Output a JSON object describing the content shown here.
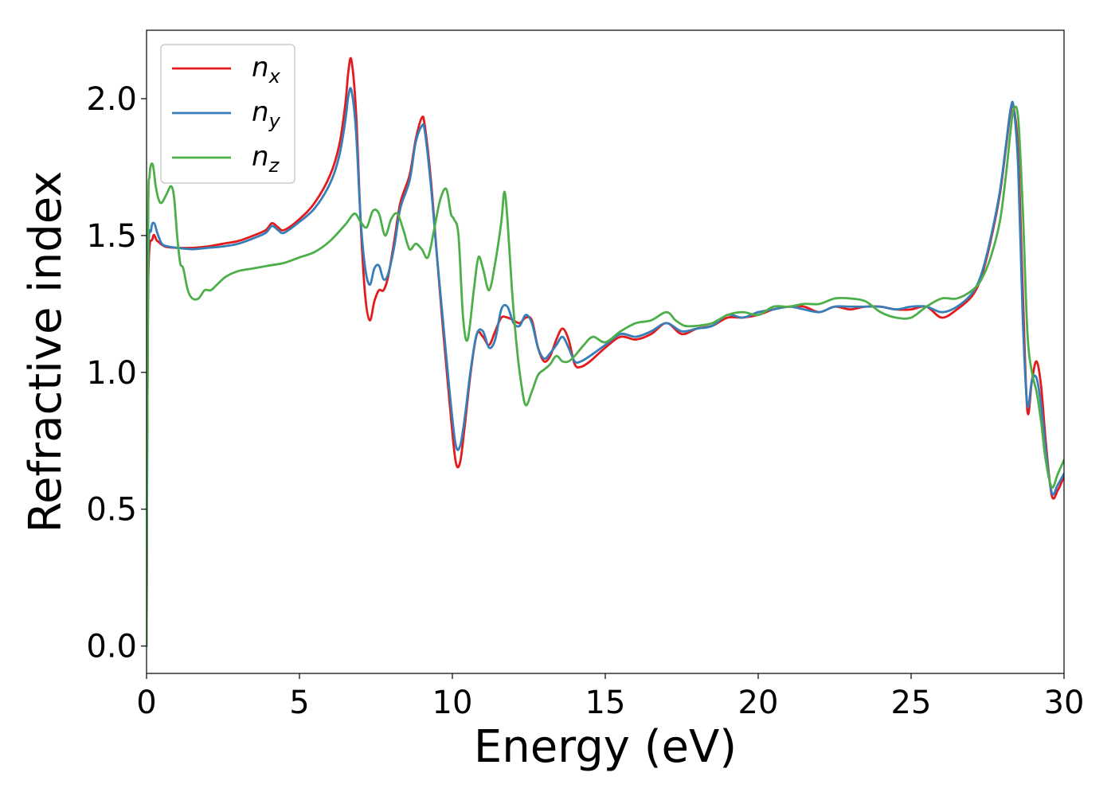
{
  "chart_data": {
    "type": "line",
    "title": "",
    "xlabel": "Energy (eV)",
    "ylabel": "Refractive index",
    "xlim": [
      0,
      30
    ],
    "ylim": [
      -0.1,
      2.25
    ],
    "xticks": [
      0,
      5,
      10,
      15,
      20,
      25,
      30
    ],
    "xtick_labels": [
      "0",
      "5",
      "10",
      "15",
      "20",
      "25",
      "30"
    ],
    "yticks": [
      0.0,
      0.5,
      1.0,
      1.5,
      2.0
    ],
    "ytick_labels": [
      "0.0",
      "0.5",
      "1.0",
      "1.5",
      "2.0"
    ],
    "grid": false,
    "legend_position": "top-left",
    "series": [
      {
        "name": "n_x",
        "label_base": "n",
        "label_sub": "x",
        "color": "#e41a1c",
        "x": [
          0,
          0.05,
          0.2,
          0.35,
          0.6,
          1.0,
          1.5,
          2.0,
          2.5,
          3.0,
          3.5,
          3.9,
          4.1,
          4.3,
          4.5,
          5.0,
          5.5,
          6.0,
          6.3,
          6.5,
          6.6,
          6.7,
          6.85,
          7.0,
          7.15,
          7.3,
          7.45,
          7.6,
          7.75,
          7.9,
          8.1,
          8.3,
          8.6,
          8.8,
          9.0,
          9.1,
          9.3,
          9.5,
          9.7,
          9.9,
          10.1,
          10.25,
          10.4,
          10.6,
          10.8,
          11.0,
          11.2,
          11.4,
          11.6,
          11.8,
          12.0,
          12.2,
          12.4,
          12.6,
          12.8,
          13.0,
          13.2,
          13.4,
          13.6,
          13.8,
          14.0,
          14.2,
          14.5,
          15.0,
          15.5,
          16.0,
          16.5,
          17.0,
          17.5,
          18.0,
          18.5,
          19.0,
          19.5,
          20.0,
          20.5,
          21.0,
          21.5,
          22.0,
          22.5,
          23.0,
          23.5,
          24.0,
          24.5,
          25.0,
          25.5,
          26.0,
          26.5,
          27.0,
          27.3,
          27.6,
          27.9,
          28.1,
          28.25,
          28.35,
          28.5,
          28.65,
          28.8,
          28.95,
          29.1,
          29.25,
          29.4,
          29.6,
          29.8,
          30.0
        ],
        "y": [
          0.0,
          1.3,
          1.49,
          1.48,
          1.46,
          1.455,
          1.455,
          1.46,
          1.47,
          1.48,
          1.5,
          1.52,
          1.545,
          1.53,
          1.52,
          1.56,
          1.62,
          1.72,
          1.83,
          1.98,
          2.1,
          2.14,
          1.95,
          1.55,
          1.28,
          1.19,
          1.26,
          1.3,
          1.3,
          1.35,
          1.48,
          1.62,
          1.72,
          1.85,
          1.93,
          1.9,
          1.7,
          1.42,
          1.15,
          0.9,
          0.68,
          0.67,
          0.8,
          1.0,
          1.14,
          1.13,
          1.1,
          1.15,
          1.2,
          1.2,
          1.19,
          1.18,
          1.2,
          1.19,
          1.09,
          1.04,
          1.06,
          1.12,
          1.16,
          1.12,
          1.03,
          1.02,
          1.04,
          1.09,
          1.13,
          1.12,
          1.14,
          1.18,
          1.14,
          1.16,
          1.17,
          1.2,
          1.2,
          1.21,
          1.23,
          1.24,
          1.24,
          1.22,
          1.24,
          1.23,
          1.24,
          1.24,
          1.23,
          1.23,
          1.24,
          1.2,
          1.23,
          1.28,
          1.35,
          1.48,
          1.65,
          1.82,
          1.95,
          1.97,
          1.8,
          1.3,
          0.86,
          0.97,
          1.04,
          0.95,
          0.75,
          0.55,
          0.57,
          0.62
        ]
      },
      {
        "name": "n_y",
        "label_base": "n",
        "label_sub": "y",
        "color": "#377eb8",
        "x": [
          0,
          0.05,
          0.15,
          0.25,
          0.35,
          0.5,
          0.7,
          1.0,
          1.5,
          2.0,
          2.5,
          3.0,
          3.5,
          3.9,
          4.1,
          4.3,
          4.5,
          5.0,
          5.5,
          6.0,
          6.3,
          6.5,
          6.6,
          6.7,
          6.85,
          7.0,
          7.15,
          7.3,
          7.45,
          7.6,
          7.75,
          7.9,
          8.1,
          8.3,
          8.6,
          8.8,
          9.0,
          9.1,
          9.3,
          9.5,
          9.7,
          9.9,
          10.1,
          10.25,
          10.4,
          10.6,
          10.8,
          11.0,
          11.2,
          11.4,
          11.6,
          11.8,
          12.0,
          12.2,
          12.4,
          12.6,
          12.8,
          13.0,
          13.2,
          13.4,
          13.6,
          13.8,
          14.0,
          14.2,
          14.5,
          15.0,
          15.5,
          16.0,
          16.5,
          17.0,
          17.5,
          18.0,
          18.5,
          19.0,
          19.5,
          20.0,
          20.5,
          21.0,
          21.5,
          22.0,
          22.5,
          23.0,
          23.5,
          24.0,
          24.5,
          25.0,
          25.5,
          26.0,
          26.5,
          27.0,
          27.3,
          27.6,
          27.9,
          28.1,
          28.25,
          28.35,
          28.5,
          28.65,
          28.8,
          28.95,
          29.1,
          29.25,
          29.4,
          29.6,
          29.8,
          30.0
        ],
        "y": [
          0.0,
          1.35,
          1.52,
          1.545,
          1.51,
          1.47,
          1.46,
          1.455,
          1.45,
          1.455,
          1.46,
          1.47,
          1.49,
          1.51,
          1.535,
          1.52,
          1.51,
          1.55,
          1.6,
          1.69,
          1.79,
          1.92,
          2.01,
          2.03,
          1.88,
          1.56,
          1.38,
          1.32,
          1.38,
          1.39,
          1.34,
          1.36,
          1.46,
          1.6,
          1.7,
          1.84,
          1.9,
          1.88,
          1.68,
          1.42,
          1.18,
          0.94,
          0.74,
          0.73,
          0.83,
          1.01,
          1.14,
          1.15,
          1.09,
          1.12,
          1.23,
          1.24,
          1.18,
          1.17,
          1.21,
          1.18,
          1.09,
          1.05,
          1.07,
          1.1,
          1.13,
          1.09,
          1.04,
          1.04,
          1.06,
          1.1,
          1.14,
          1.13,
          1.15,
          1.18,
          1.15,
          1.16,
          1.17,
          1.21,
          1.2,
          1.22,
          1.23,
          1.24,
          1.23,
          1.22,
          1.24,
          1.24,
          1.24,
          1.24,
          1.23,
          1.24,
          1.24,
          1.22,
          1.24,
          1.29,
          1.36,
          1.49,
          1.66,
          1.83,
          1.96,
          1.97,
          1.75,
          1.2,
          0.88,
          0.97,
          0.98,
          0.88,
          0.72,
          0.56,
          0.59,
          0.63
        ]
      },
      {
        "name": "n_z",
        "label_base": "n",
        "label_sub": "z",
        "color": "#4daf4a",
        "x": [
          0,
          0.05,
          0.1,
          0.2,
          0.3,
          0.4,
          0.5,
          0.65,
          0.8,
          0.9,
          1.0,
          1.1,
          1.2,
          1.35,
          1.5,
          1.7,
          1.9,
          2.1,
          2.3,
          2.6,
          3.0,
          3.5,
          4.0,
          4.5,
          5.0,
          5.5,
          6.0,
          6.5,
          6.8,
          7.0,
          7.2,
          7.4,
          7.6,
          7.8,
          8.0,
          8.2,
          8.4,
          8.6,
          8.8,
          9.0,
          9.2,
          9.4,
          9.6,
          9.8,
          9.95,
          10.05,
          10.2,
          10.35,
          10.5,
          10.7,
          10.85,
          11.0,
          11.2,
          11.4,
          11.6,
          11.7,
          11.8,
          11.95,
          12.1,
          12.25,
          12.4,
          12.6,
          12.8,
          13.0,
          13.2,
          13.4,
          13.6,
          13.8,
          14.0,
          14.3,
          14.6,
          15.0,
          15.5,
          16.0,
          16.5,
          17.0,
          17.3,
          17.6,
          18.0,
          18.5,
          19.0,
          19.5,
          20.0,
          20.5,
          21.0,
          21.5,
          22.0,
          22.5,
          23.0,
          23.5,
          24.0,
          24.5,
          25.0,
          25.5,
          26.0,
          26.5,
          27.0,
          27.3,
          27.6,
          27.9,
          28.1,
          28.25,
          28.35,
          28.5,
          28.65,
          28.8,
          28.95,
          29.1,
          29.25,
          29.4,
          29.6,
          29.8,
          30.0
        ],
        "y": [
          0.0,
          1.5,
          1.72,
          1.76,
          1.68,
          1.63,
          1.62,
          1.65,
          1.68,
          1.64,
          1.5,
          1.4,
          1.38,
          1.3,
          1.27,
          1.27,
          1.3,
          1.3,
          1.32,
          1.35,
          1.37,
          1.38,
          1.39,
          1.4,
          1.42,
          1.44,
          1.48,
          1.54,
          1.58,
          1.55,
          1.53,
          1.59,
          1.58,
          1.5,
          1.56,
          1.58,
          1.52,
          1.45,
          1.47,
          1.45,
          1.42,
          1.52,
          1.63,
          1.67,
          1.58,
          1.56,
          1.5,
          1.2,
          1.12,
          1.3,
          1.42,
          1.38,
          1.3,
          1.4,
          1.55,
          1.66,
          1.56,
          1.3,
          1.1,
          0.96,
          0.88,
          0.93,
          0.99,
          1.01,
          1.03,
          1.06,
          1.04,
          1.04,
          1.06,
          1.1,
          1.13,
          1.11,
          1.15,
          1.18,
          1.19,
          1.22,
          1.19,
          1.17,
          1.17,
          1.18,
          1.21,
          1.22,
          1.21,
          1.24,
          1.24,
          1.25,
          1.25,
          1.27,
          1.27,
          1.26,
          1.22,
          1.2,
          1.2,
          1.24,
          1.27,
          1.27,
          1.3,
          1.34,
          1.42,
          1.55,
          1.72,
          1.88,
          1.96,
          1.93,
          1.6,
          1.15,
          1.0,
          0.93,
          0.82,
          0.68,
          0.58,
          0.63,
          0.68
        ]
      }
    ]
  }
}
